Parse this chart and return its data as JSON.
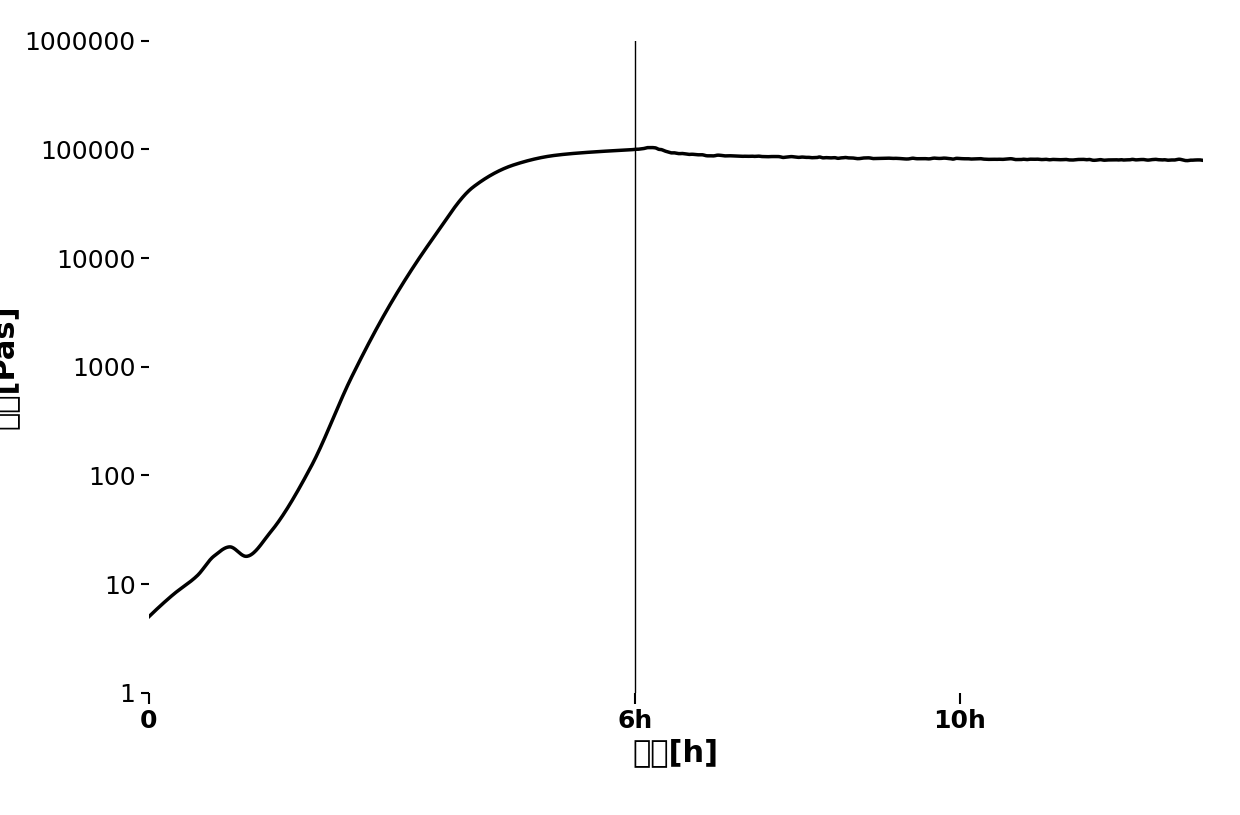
{
  "title": "",
  "xlabel": "时间[h]",
  "ylabel": "粘度[Pas]",
  "xlim": [
    0,
    13
  ],
  "ylim_log": [
    1,
    1000000
  ],
  "x_ticks": [
    0,
    6,
    10
  ],
  "x_tick_labels": [
    "0",
    "6h",
    "10h"
  ],
  "y_ticks": [
    1,
    10,
    100,
    1000,
    10000,
    100000,
    1000000
  ],
  "vline_x": 6.0,
  "line_color": "#000000",
  "background_color": "#ffffff",
  "xlabel_fontsize": 22,
  "ylabel_fontsize": 22,
  "tick_fontsize": 18,
  "line_width": 2.5,
  "curve_x": [
    0.0,
    0.3,
    0.6,
    0.8,
    1.0,
    1.2,
    1.5,
    2.0,
    2.5,
    3.0,
    3.5,
    4.0,
    4.5,
    5.0,
    5.5,
    6.0,
    6.1,
    6.2,
    6.3,
    6.5,
    7.0,
    8.0,
    9.0,
    10.0,
    11.0,
    12.0,
    13.0
  ],
  "curve_y": [
    5,
    8,
    12,
    18,
    22,
    18,
    30,
    120,
    800,
    4000,
    15000,
    45000,
    72000,
    88000,
    95000,
    100000,
    102000,
    105000,
    100000,
    92000,
    88000,
    85000,
    83000,
    82000,
    81000,
    80000,
    80000
  ]
}
